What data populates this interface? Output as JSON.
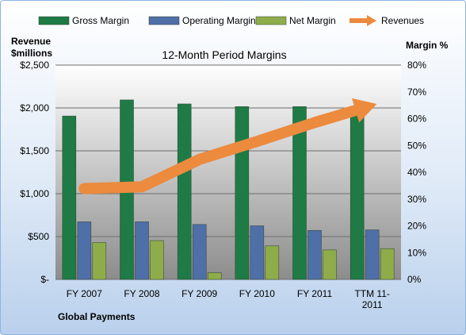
{
  "chart_data": {
    "type": "bar",
    "title": "12-Month Period Margins",
    "categories": [
      "FY 2007",
      "FY 2008",
      "FY 2009",
      "FY 2010",
      "FY 2011",
      "TTM 11-2011"
    ],
    "category_lines": [
      [
        "FY 2007"
      ],
      [
        "FY 2008"
      ],
      [
        "FY 2009"
      ],
      [
        "FY 2010"
      ],
      [
        "FY 2011"
      ],
      [
        "TTM 11-",
        "2011"
      ]
    ],
    "series": [
      {
        "name": "Gross Margin",
        "axis": "right",
        "color": "#1e7b45",
        "values": [
          61,
          67,
          65.5,
          64.5,
          64.5,
          64
        ]
      },
      {
        "name": "Operating Margin",
        "axis": "right",
        "color": "#4f6fa8",
        "values": [
          21.5,
          21.5,
          20.5,
          20,
          18.3,
          18.5
        ]
      },
      {
        "name": "Net Margin",
        "axis": "right",
        "color": "#8ead4a",
        "values": [
          13.8,
          14.5,
          2.5,
          12.5,
          11,
          11.5
        ]
      },
      {
        "name": "Revenues",
        "axis": "left",
        "type": "line",
        "color": "#ec8a3e",
        "values": [
          1060,
          1080,
          1400,
          1610,
          1830,
          2030
        ]
      }
    ],
    "left_axis": {
      "label_lines": [
        "Revenue",
        "$millions"
      ],
      "range": [
        0,
        2500
      ],
      "ticks": [
        0,
        500,
        1000,
        1500,
        2000,
        2500
      ],
      "tick_labels": [
        "$-",
        "$500",
        "$1,000",
        "$1,500",
        "$2,000",
        "$2,500"
      ]
    },
    "right_axis": {
      "label": "Margin %",
      "range": [
        0,
        80
      ],
      "ticks": [
        0,
        10,
        20,
        30,
        40,
        50,
        60,
        70,
        80
      ],
      "tick_labels": [
        "0%",
        "10%",
        "20%",
        "30%",
        "40%",
        "50%",
        "60%",
        "70%",
        "80%"
      ]
    },
    "grid": true,
    "legend_position": "top",
    "plot_background": [
      "#ffffff",
      "#8c8c8c"
    ],
    "caption": "Global Payments"
  }
}
